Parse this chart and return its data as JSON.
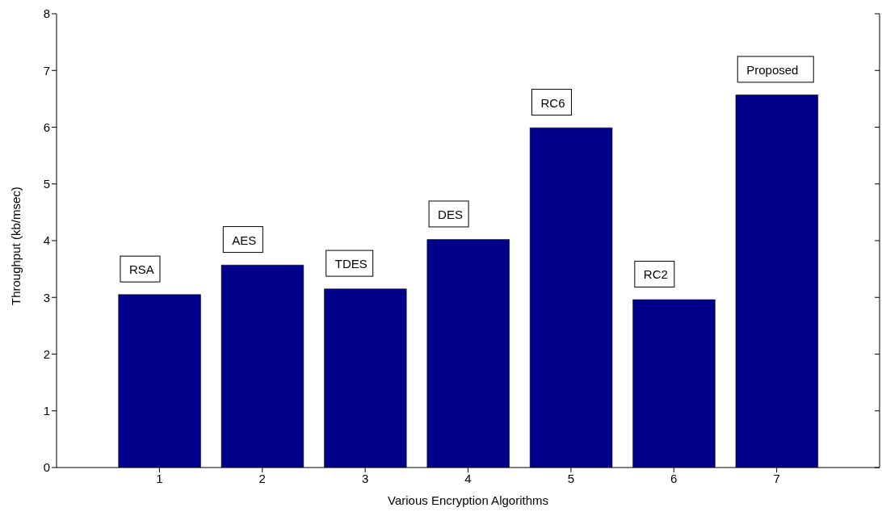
{
  "chart_data": {
    "type": "bar",
    "xlabel": "Various Encryption Algorithms",
    "ylabel": "Throughput (kb/msec)",
    "x": [
      1,
      2,
      3,
      4,
      5,
      6,
      7
    ],
    "values": [
      3.05,
      3.57,
      3.15,
      4.02,
      5.99,
      2.96,
      6.57
    ],
    "color": "#00008b",
    "xlim": [
      0,
      8
    ],
    "xticks": [
      1,
      2,
      3,
      4,
      5,
      6,
      7
    ],
    "ylim": [
      0,
      8
    ],
    "yticks": [
      0,
      1,
      2,
      3,
      4,
      5,
      6,
      7,
      8
    ],
    "annotations": [
      "RSA",
      "AES",
      "TDES",
      "DES",
      "RC6",
      "RC2",
      "Proposed"
    ],
    "grid": false,
    "legend": false
  }
}
